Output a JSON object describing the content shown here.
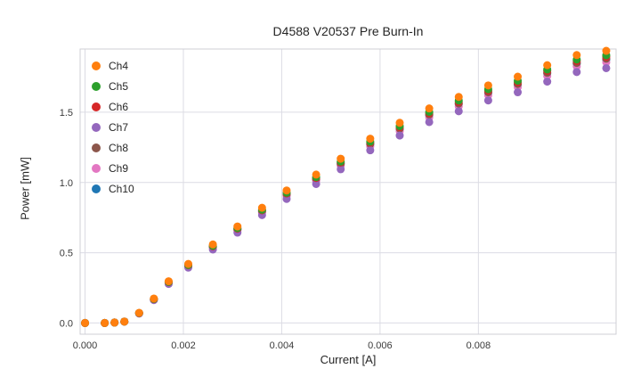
{
  "title": "D4588 V20537 Pre Burn-In",
  "colors": {
    "background": "#ffffff",
    "grid": "#dcdce4",
    "spine": "#cfcfd6",
    "text": "#262626"
  },
  "chart_data": {
    "type": "scatter",
    "title": "D4588 V20537 Pre Burn-In",
    "xlabel": "Current [A]",
    "ylabel": "Power [mW]",
    "xlim": [
      -0.0001,
      0.0108
    ],
    "ylim": [
      -0.08,
      1.95
    ],
    "xticks": [
      0.0,
      0.002,
      0.004,
      0.006,
      0.008
    ],
    "xtick_labels": [
      "0.000",
      "0.002",
      "0.004",
      "0.006",
      "0.008"
    ],
    "yticks": [
      0.0,
      0.5,
      1.0,
      1.5
    ],
    "ytick_labels": [
      "0.0",
      "0.5",
      "1.0",
      "1.5"
    ],
    "grid": true,
    "legend_position": "upper-left",
    "marker_radius": 4.5,
    "x": [
      0.0,
      0.0004,
      0.0006,
      0.0008,
      0.0011,
      0.0014,
      0.0017,
      0.0021,
      0.0026,
      0.0031,
      0.0036,
      0.0041,
      0.0047,
      0.0052,
      0.0058,
      0.0064,
      0.007,
      0.0076,
      0.0082,
      0.0088,
      0.0094,
      0.01,
      0.0106
    ],
    "series": [
      {
        "name": "Ch4",
        "color": "#ff7f0e",
        "values": [
          0.0,
          0.0,
          0.003,
          0.01,
          0.072,
          0.174,
          0.297,
          0.42,
          0.559,
          0.687,
          0.82,
          0.943,
          1.056,
          1.169,
          1.312,
          1.425,
          1.527,
          1.609,
          1.691,
          1.753,
          1.835,
          1.907,
          1.937
        ]
      },
      {
        "name": "Ch5",
        "color": "#2ca02c",
        "values": [
          0.0,
          0.0,
          0.003,
          0.01,
          0.071,
          0.171,
          0.292,
          0.413,
          0.549,
          0.675,
          0.806,
          0.927,
          1.038,
          1.149,
          1.29,
          1.401,
          1.502,
          1.583,
          1.663,
          1.724,
          1.804,
          1.875,
          1.905
        ]
      },
      {
        "name": "Ch6",
        "color": "#d62728",
        "values": [
          0.0,
          0.0,
          0.003,
          0.01,
          0.07,
          0.17,
          0.291,
          0.411,
          0.546,
          0.671,
          0.802,
          0.922,
          1.032,
          1.142,
          1.283,
          1.393,
          1.493,
          1.573,
          1.653,
          1.713,
          1.794,
          1.864,
          1.894
        ]
      },
      {
        "name": "Ch7",
        "color": "#9467bd",
        "values": [
          0.0,
          0.0,
          0.003,
          0.01,
          0.067,
          0.163,
          0.278,
          0.394,
          0.523,
          0.643,
          0.768,
          0.883,
          0.989,
          1.094,
          1.229,
          1.334,
          1.43,
          1.507,
          1.584,
          1.642,
          1.718,
          1.786,
          1.814
        ]
      },
      {
        "name": "Ch8",
        "color": "#8c564b",
        "values": [
          0.0,
          0.0,
          0.003,
          0.01,
          0.07,
          0.169,
          0.289,
          0.408,
          0.542,
          0.667,
          0.796,
          0.915,
          1.025,
          1.134,
          1.274,
          1.383,
          1.483,
          1.562,
          1.642,
          1.701,
          1.781,
          1.851,
          1.881
        ]
      },
      {
        "name": "Ch9",
        "color": "#e377c2",
        "values": [
          0.0,
          0.0,
          0.003,
          0.01,
          0.069,
          0.167,
          0.285,
          0.403,
          0.535,
          0.658,
          0.786,
          0.903,
          1.011,
          1.119,
          1.257,
          1.365,
          1.463,
          1.542,
          1.62,
          1.679,
          1.758,
          1.826,
          1.856
        ]
      },
      {
        "name": "Ch10",
        "color": "#1f77b4",
        "values": [
          0.0,
          0.0,
          0.003,
          0.01,
          0.069,
          0.169,
          0.288,
          0.407,
          0.541,
          0.665,
          0.794,
          0.913,
          1.022,
          1.131,
          1.27,
          1.379,
          1.478,
          1.558,
          1.637,
          1.696,
          1.776,
          1.845,
          1.875
        ]
      }
    ]
  }
}
